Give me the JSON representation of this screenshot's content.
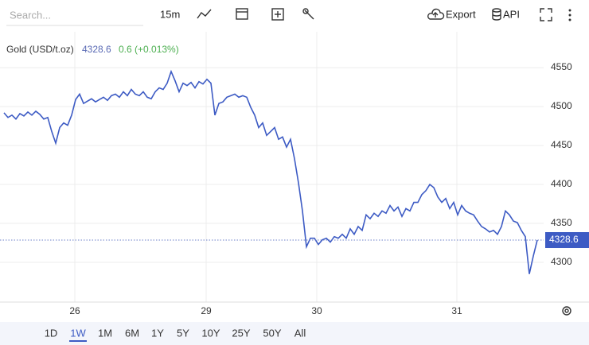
{
  "toolbar": {
    "search_placeholder": "Search...",
    "interval": "15m",
    "export": "Export",
    "api": "API"
  },
  "ranges": [
    "1D",
    "1W",
    "1M",
    "6M",
    "1Y",
    "5Y",
    "10Y",
    "25Y",
    "50Y",
    "All"
  ],
  "chart_data": {
    "type": "line",
    "title": "Gold (USD/t.oz)",
    "last_price": {
      "value": 4328.6,
      "label": "4328.6"
    },
    "change": "0.6 (+0.013%)",
    "x": [
      1,
      2,
      3,
      4,
      5,
      6,
      7,
      8,
      9,
      10,
      11,
      12,
      13,
      14,
      15,
      16,
      17,
      18,
      19,
      20,
      21,
      22,
      23,
      24,
      25,
      26,
      27,
      28,
      29,
      30,
      31,
      32,
      33,
      34,
      35,
      36,
      37,
      38,
      39,
      40,
      41,
      42,
      43,
      44,
      45,
      46,
      47,
      48,
      49,
      50,
      51,
      52,
      53,
      54,
      55,
      56,
      57,
      58,
      59,
      60,
      61,
      62,
      63,
      64,
      65,
      66,
      67,
      68,
      69,
      70,
      71,
      72,
      73,
      74,
      75,
      76,
      77,
      78,
      79,
      80,
      81,
      82,
      83,
      84,
      85,
      86,
      87,
      88,
      89,
      90,
      91,
      92,
      93,
      94,
      95,
      96,
      97,
      98,
      99,
      100,
      101,
      102,
      103,
      104,
      105,
      106,
      107,
      108,
      109,
      110,
      111,
      112,
      113,
      114,
      115,
      116,
      117,
      118,
      119,
      120,
      121,
      122,
      123,
      124,
      125,
      126,
      127,
      128,
      129,
      130,
      131,
      132,
      133,
      134,
      135
    ],
    "series": [
      {
        "name": "Gold (USD/t.oz)",
        "color": "#3d5bc4",
        "values": [
          4492,
          4486,
          4489,
          4484,
          4491,
          4488,
          4493,
          4489,
          4494,
          4490,
          4484,
          4486,
          4468,
          4453,
          4473,
          4479,
          4476,
          4489,
          4509,
          4516,
          4504,
          4507,
          4510,
          4506,
          4509,
          4512,
          4508,
          4514,
          4516,
          4512,
          4519,
          4514,
          4522,
          4516,
          4514,
          4519,
          4512,
          4510,
          4519,
          4524,
          4522,
          4530,
          4545,
          4533,
          4519,
          4530,
          4527,
          4531,
          4524,
          4532,
          4529,
          4535,
          4530,
          4489,
          4504,
          4506,
          4512,
          4514,
          4516,
          4512,
          4514,
          4512,
          4499,
          4489,
          4473,
          4479,
          4463,
          4468,
          4473,
          4458,
          4461,
          4448,
          4458,
          4433,
          4402,
          4366,
          4320,
          4331,
          4331,
          4323,
          4329,
          4331,
          4326,
          4333,
          4331,
          4336,
          4331,
          4343,
          4336,
          4346,
          4341,
          4361,
          4356,
          4363,
          4359,
          4366,
          4363,
          4373,
          4366,
          4371,
          4359,
          4369,
          4366,
          4377,
          4377,
          4387,
          4392,
          4400,
          4396,
          4384,
          4377,
          4382,
          4369,
          4377,
          4361,
          4373,
          4366,
          4363,
          4361,
          4353,
          4346,
          4343,
          4339,
          4341,
          4336,
          4346,
          4366,
          4361,
          4353,
          4351,
          4341,
          4333,
          4285,
          4308,
          4328.6
        ]
      }
    ],
    "xlim": [
      0,
      136.6
    ],
    "xticks": [
      {
        "value": 18.8,
        "label": "26"
      },
      {
        "value": 51.8,
        "label": "29"
      },
      {
        "value": 79.6,
        "label": "30"
      },
      {
        "value": 114.8,
        "label": "31"
      }
    ],
    "ylim": [
      4249,
      4596
    ],
    "yticks": [
      4300,
      4350,
      4400,
      4450,
      4500,
      4550
    ],
    "grid": true
  }
}
